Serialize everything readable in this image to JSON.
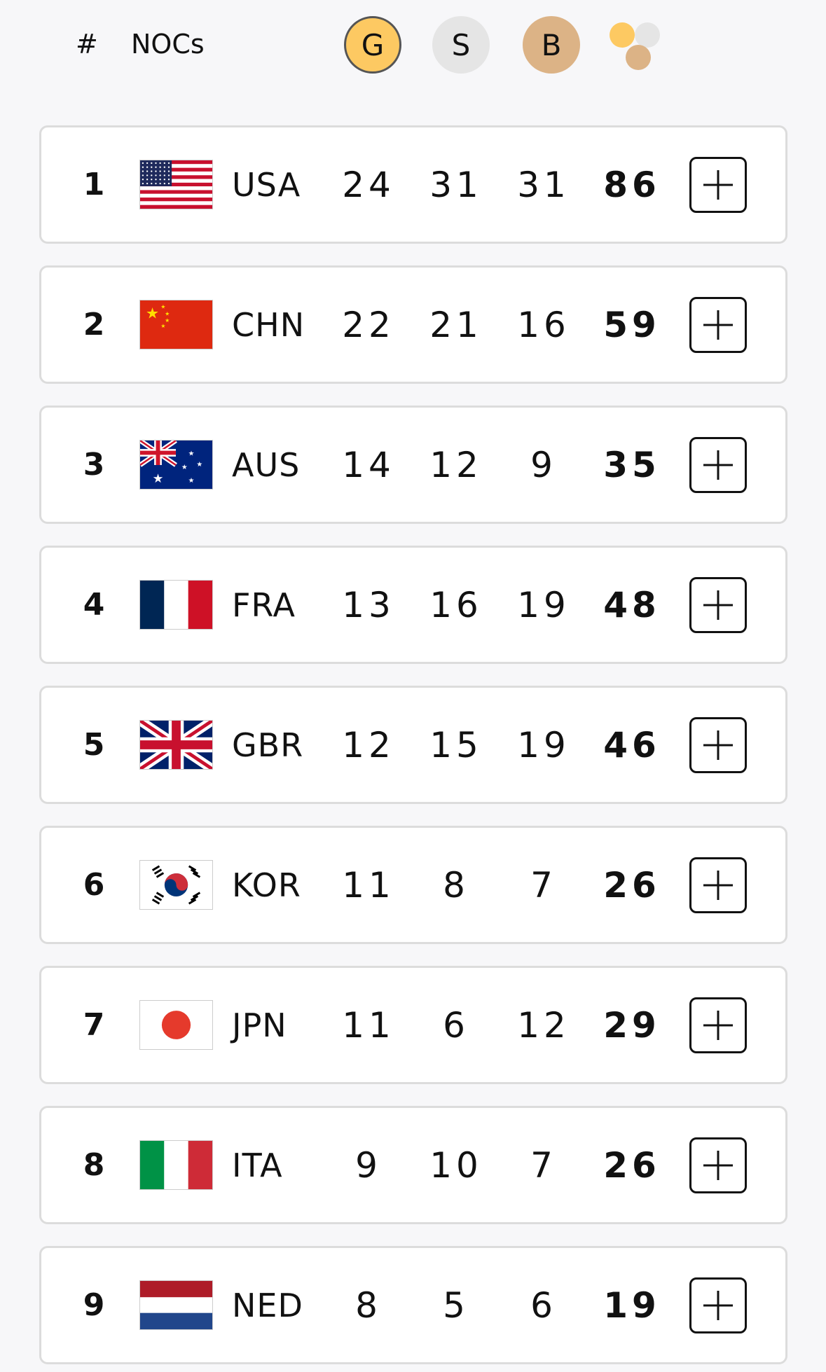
{
  "header": {
    "rank_label": "#",
    "noc_label": "NOCs",
    "gold_label": "G",
    "silver_label": "S",
    "bronze_label": "B",
    "total_icon": "medals-total-icon"
  },
  "colors": {
    "gold": "#fdc962",
    "silver": "#e5e5e5",
    "bronze": "#dcb386"
  },
  "rows": [
    {
      "rank": "1",
      "code": "USA",
      "flag": "usa",
      "gold": "24",
      "silver": "31",
      "bronze": "31",
      "total": "86"
    },
    {
      "rank": "2",
      "code": "CHN",
      "flag": "chn",
      "gold": "22",
      "silver": "21",
      "bronze": "16",
      "total": "59"
    },
    {
      "rank": "3",
      "code": "AUS",
      "flag": "aus",
      "gold": "14",
      "silver": "12",
      "bronze": "9",
      "total": "35"
    },
    {
      "rank": "4",
      "code": "FRA",
      "flag": "fra",
      "gold": "13",
      "silver": "16",
      "bronze": "19",
      "total": "48"
    },
    {
      "rank": "5",
      "code": "GBR",
      "flag": "gbr",
      "gold": "12",
      "silver": "15",
      "bronze": "19",
      "total": "46"
    },
    {
      "rank": "6",
      "code": "KOR",
      "flag": "kor",
      "gold": "11",
      "silver": "8",
      "bronze": "7",
      "total": "26"
    },
    {
      "rank": "7",
      "code": "JPN",
      "flag": "jpn",
      "gold": "11",
      "silver": "6",
      "bronze": "12",
      "total": "29"
    },
    {
      "rank": "8",
      "code": "ITA",
      "flag": "ita",
      "gold": "9",
      "silver": "10",
      "bronze": "7",
      "total": "26"
    },
    {
      "rank": "9",
      "code": "NED",
      "flag": "ned",
      "gold": "8",
      "silver": "5",
      "bronze": "6",
      "total": "19"
    }
  ]
}
